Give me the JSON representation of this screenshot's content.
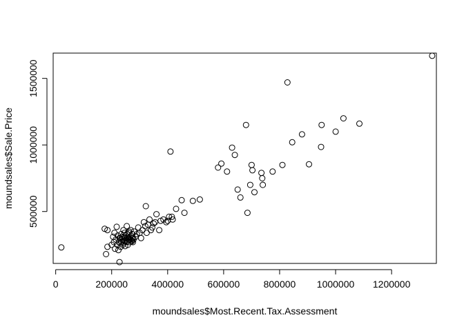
{
  "chart_data": {
    "type": "scatter",
    "title": "",
    "xlabel": "moundsales$Most.Recent.Tax.Assessment",
    "ylabel": "moundsales$Sale.Price",
    "xlim": [
      -9000,
      1360000
    ],
    "ylim": [
      110000,
      1690000
    ],
    "x_ticks": [
      0,
      200000,
      400000,
      600000,
      800000,
      1000000,
      1200000
    ],
    "x_tick_labels": [
      "0",
      "200000",
      "400000",
      "600000",
      "800000",
      "1000000",
      "1200000"
    ],
    "y_ticks": [
      500000,
      1000000,
      1500000
    ],
    "y_tick_labels": [
      "500000",
      "1000000",
      "1500000"
    ],
    "grid": false,
    "legend": "none",
    "marker": "open-circle",
    "color": "#000000",
    "points": [
      [
        20000,
        230000
      ],
      [
        175000,
        370000
      ],
      [
        180000,
        180000
      ],
      [
        185000,
        235000
      ],
      [
        185000,
        360000
      ],
      [
        200000,
        250000
      ],
      [
        205000,
        310000
      ],
      [
        208000,
        270000
      ],
      [
        210000,
        340000
      ],
      [
        212000,
        220000
      ],
      [
        215000,
        290000
      ],
      [
        218000,
        385000
      ],
      [
        220000,
        250000
      ],
      [
        222000,
        320000
      ],
      [
        224000,
        210000
      ],
      [
        226000,
        270000
      ],
      [
        228000,
        120000
      ],
      [
        230000,
        300000
      ],
      [
        232000,
        235000
      ],
      [
        234000,
        330000
      ],
      [
        236000,
        270000
      ],
      [
        238000,
        290000
      ],
      [
        240000,
        250000
      ],
      [
        242000,
        360000
      ],
      [
        244000,
        310000
      ],
      [
        246000,
        280000
      ],
      [
        248000,
        240000
      ],
      [
        250000,
        320000
      ],
      [
        252000,
        270000
      ],
      [
        254000,
        390000
      ],
      [
        256000,
        300000
      ],
      [
        258000,
        250000
      ],
      [
        260000,
        340000
      ],
      [
        262000,
        290000
      ],
      [
        264000,
        270000
      ],
      [
        266000,
        310000
      ],
      [
        268000,
        360000
      ],
      [
        270000,
        280000
      ],
      [
        272000,
        300000
      ],
      [
        274000,
        330000
      ],
      [
        276000,
        270000
      ],
      [
        278000,
        290000
      ],
      [
        280000,
        350000
      ],
      [
        285000,
        310000
      ],
      [
        290000,
        330000
      ],
      [
        295000,
        380000
      ],
      [
        300000,
        340000
      ],
      [
        305000,
        300000
      ],
      [
        310000,
        360000
      ],
      [
        315000,
        420000
      ],
      [
        320000,
        390000
      ],
      [
        322000,
        540000
      ],
      [
        325000,
        340000
      ],
      [
        330000,
        400000
      ],
      [
        335000,
        440000
      ],
      [
        340000,
        360000
      ],
      [
        345000,
        380000
      ],
      [
        350000,
        410000
      ],
      [
        355000,
        420000
      ],
      [
        360000,
        480000
      ],
      [
        370000,
        360000
      ],
      [
        375000,
        430000
      ],
      [
        385000,
        440000
      ],
      [
        395000,
        420000
      ],
      [
        400000,
        430000
      ],
      [
        405000,
        460000
      ],
      [
        410000,
        950000
      ],
      [
        415000,
        460000
      ],
      [
        418000,
        440000
      ],
      [
        430000,
        520000
      ],
      [
        450000,
        585000
      ],
      [
        460000,
        490000
      ],
      [
        490000,
        580000
      ],
      [
        515000,
        590000
      ],
      [
        580000,
        830000
      ],
      [
        592000,
        860000
      ],
      [
        612000,
        800000
      ],
      [
        630000,
        980000
      ],
      [
        640000,
        925000
      ],
      [
        650000,
        665000
      ],
      [
        660000,
        605000
      ],
      [
        680000,
        1150000
      ],
      [
        685000,
        490000
      ],
      [
        695000,
        700000
      ],
      [
        700000,
        850000
      ],
      [
        703000,
        810000
      ],
      [
        710000,
        645000
      ],
      [
        735000,
        790000
      ],
      [
        738000,
        750000
      ],
      [
        740000,
        700000
      ],
      [
        775000,
        800000
      ],
      [
        810000,
        850000
      ],
      [
        828000,
        1470000
      ],
      [
        845000,
        1020000
      ],
      [
        880000,
        1080000
      ],
      [
        905000,
        855000
      ],
      [
        948000,
        985000
      ],
      [
        950000,
        1150000
      ],
      [
        1000000,
        1100000
      ],
      [
        1028000,
        1200000
      ],
      [
        1085000,
        1160000
      ],
      [
        1345000,
        1670000
      ],
      [
        228000,
        300000
      ],
      [
        232000,
        260000
      ],
      [
        236000,
        310000
      ],
      [
        240000,
        280000
      ],
      [
        244000,
        265000
      ],
      [
        248000,
        300000
      ],
      [
        252000,
        285000
      ],
      [
        256000,
        275000
      ],
      [
        260000,
        300000
      ],
      [
        264000,
        285000
      ],
      [
        268000,
        290000
      ],
      [
        272000,
        275000
      ],
      [
        276000,
        300000
      ],
      [
        262000,
        350000
      ],
      [
        246000,
        340000
      ],
      [
        254000,
        330000
      ]
    ]
  }
}
